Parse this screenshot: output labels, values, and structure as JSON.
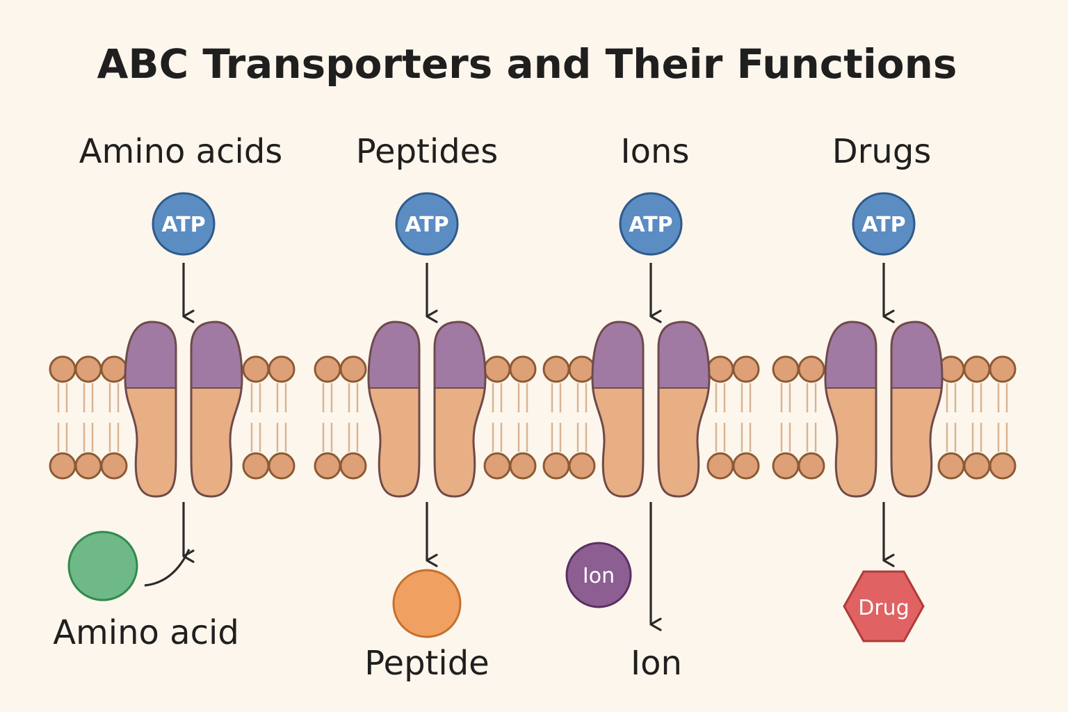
{
  "title": "ABC Transporters and Their Functions",
  "colors": {
    "background": "#fdf6ec",
    "atp": "#5b8cc2",
    "atp_stroke": "#2f5a8a",
    "nbd": "#a07aa3",
    "tmd": "#e8ae84",
    "protein_stroke": "#6e4a4a",
    "lipid_head": "#dea077",
    "lipid_stroke": "#8c5a34",
    "arrow": "#2a2a2a"
  },
  "panels": [
    {
      "heading": "Amino acids",
      "atp": "ATP",
      "substrate_text": "",
      "substrate_shape": "circle",
      "substrate_color": "#6fb887",
      "substrate_stroke": "#2f8a4e",
      "label": "Amino acid"
    },
    {
      "heading": "Peptides",
      "atp": "ATP",
      "substrate_text": "",
      "substrate_shape": "circle",
      "substrate_color": "#f0a060",
      "substrate_stroke": "#c4702e",
      "label": "Peptide"
    },
    {
      "heading": "Ions",
      "atp": "ATP",
      "substrate_text": "Ion",
      "substrate_shape": "circle",
      "substrate_color": "#8c5e92",
      "substrate_stroke": "#5a2f62",
      "label": "Ion"
    },
    {
      "heading": "Drugs",
      "atp": "ATP",
      "substrate_text": "Drug",
      "substrate_shape": "hexagon",
      "substrate_color": "#e06262",
      "substrate_stroke": "#b03a3a",
      "label": ""
    }
  ]
}
